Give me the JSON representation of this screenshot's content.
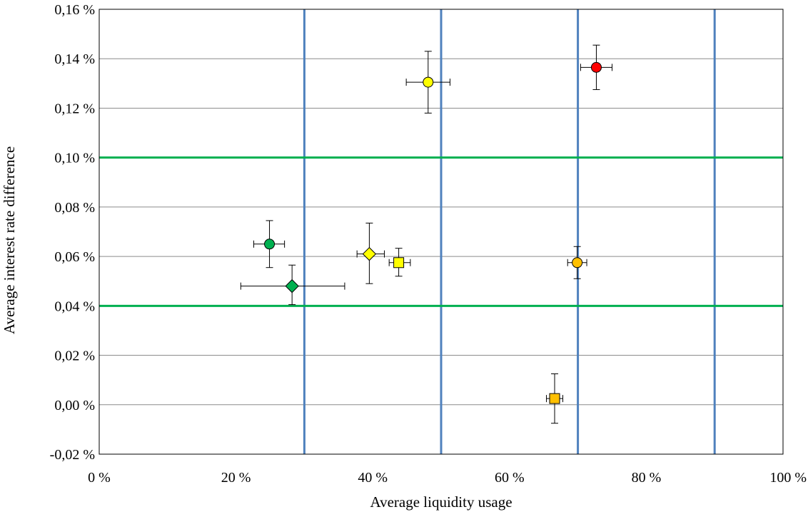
{
  "chart_data": {
    "type": "scatter",
    "title": "",
    "xlabel": "Average liquidity usage",
    "ylabel": "Average interest rate difference",
    "xlim": [
      0,
      100
    ],
    "ylim": [
      -0.02,
      0.16
    ],
    "x_ticks": [
      0,
      20,
      40,
      60,
      80,
      100
    ],
    "x_tick_labels": [
      "0 %",
      "20 %",
      "40 %",
      "60 %",
      "80 %",
      "100 %"
    ],
    "y_ticks": [
      -0.02,
      0.0,
      0.02,
      0.04,
      0.06,
      0.08,
      0.1,
      0.12,
      0.14,
      0.16
    ],
    "y_tick_labels": [
      "-0,02 %",
      "0,00 %",
      "0,02 %",
      "0,04 %",
      "0,06 %",
      "0,08 %",
      "0,10 %",
      "0,12 %",
      "0,14 %",
      "0,16 %"
    ],
    "grid": "horizontal",
    "reference_lines": {
      "vertical_x": [
        30,
        50,
        70,
        90
      ],
      "vertical_color": "#4F81BD",
      "horizontal_y": [
        0.04,
        0.1
      ],
      "horizontal_color": "#00B050"
    },
    "points": [
      {
        "x": 24.9,
        "y": 0.065,
        "x_err": [
          2.3,
          2.2
        ],
        "y_err": [
          0.0095,
          0.0095
        ],
        "marker": "circle",
        "color": "#00B050"
      },
      {
        "x": 28.2,
        "y": 0.048,
        "x_err": [
          7.5,
          7.7
        ],
        "y_err": [
          0.0075,
          0.0085
        ],
        "marker": "diamond",
        "color": "#00B050"
      },
      {
        "x": 39.5,
        "y": 0.061,
        "x_err": [
          1.8,
          2.2
        ],
        "y_err": [
          0.012,
          0.0125
        ],
        "marker": "diamond",
        "color": "#FFFF00"
      },
      {
        "x": 43.8,
        "y": 0.0575,
        "x_err": [
          1.4,
          1.7
        ],
        "y_err": [
          0.0055,
          0.0058
        ],
        "marker": "square",
        "color": "#FFFF00"
      },
      {
        "x": 48.1,
        "y": 0.1305,
        "x_err": [
          3.2,
          3.2
        ],
        "y_err": [
          0.0125,
          0.0125
        ],
        "marker": "circle",
        "color": "#FFFF00"
      },
      {
        "x": 66.6,
        "y": 0.0025,
        "x_err": [
          1.2,
          1.2
        ],
        "y_err": [
          0.01,
          0.01
        ],
        "marker": "square",
        "color": "#FFC000"
      },
      {
        "x": 69.9,
        "y": 0.0575,
        "x_err": [
          1.4,
          1.4
        ],
        "y_err": [
          0.0065,
          0.0065
        ],
        "marker": "circle",
        "color": "#FFC000"
      },
      {
        "x": 72.7,
        "y": 0.1365,
        "x_err": [
          2.3,
          2.3
        ],
        "y_err": [
          0.009,
          0.009
        ],
        "marker": "circle",
        "color": "#FF0000"
      }
    ]
  }
}
